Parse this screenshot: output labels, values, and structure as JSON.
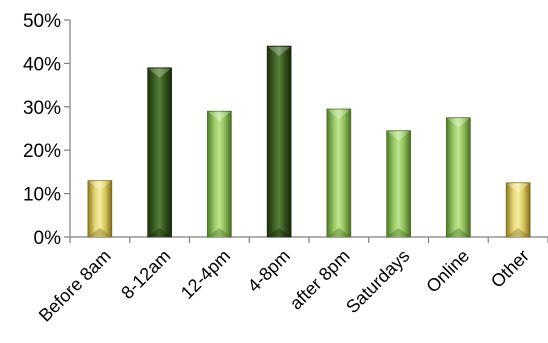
{
  "chart_data": {
    "type": "bar",
    "categories": [
      "Before 8am",
      "8-12am",
      "12-4pm",
      "4-8pm",
      "after 8pm",
      "Saturdays",
      "Online",
      "Other"
    ],
    "values": [
      0.13,
      0.39,
      0.29,
      0.44,
      0.295,
      0.245,
      0.275,
      0.125
    ],
    "color_groups": [
      "gold",
      "dark-green",
      "light-green",
      "dark-green",
      "light-green",
      "light-green",
      "light-green",
      "gold"
    ],
    "colors": {
      "gold": "#d9c75e",
      "dark-green": "#3a5a1e",
      "light-green": "#8fbf5a"
    },
    "ylim": [
      0,
      0.5
    ],
    "yticks": [
      0,
      0.1,
      0.2,
      0.3,
      0.4,
      0.5
    ],
    "ytick_labels": [
      "0%",
      "10%",
      "20%",
      "30%",
      "40%",
      "50%"
    ],
    "grid": false,
    "legend": "none",
    "title": "",
    "xlabel": "",
    "ylabel": ""
  }
}
